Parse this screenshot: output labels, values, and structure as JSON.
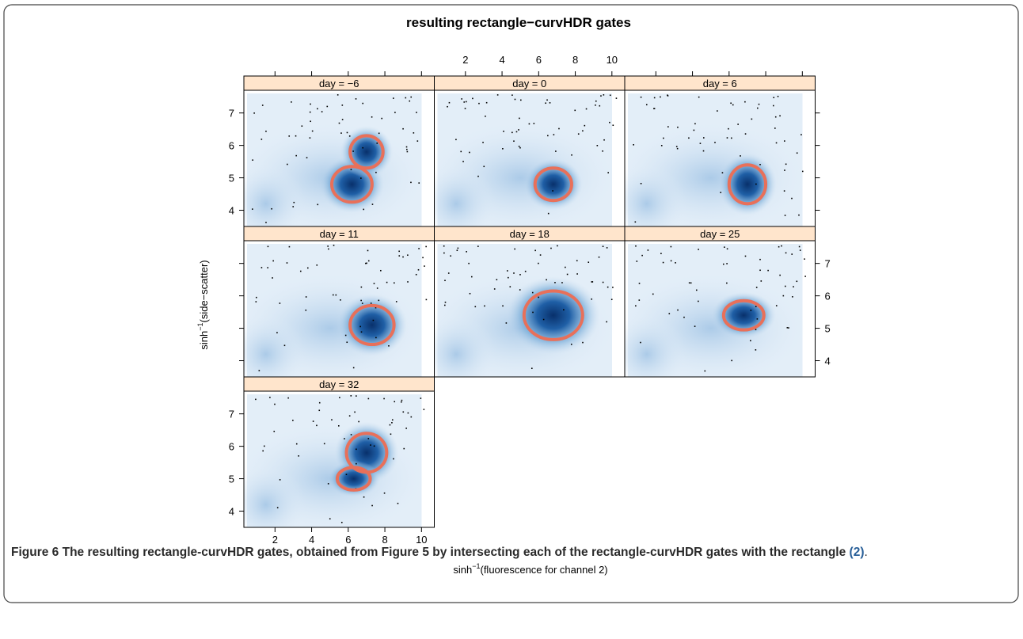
{
  "chart_data": {
    "type": "density-gates",
    "title": "resulting rectangle−curvHDR gates",
    "xlabel": {
      "base": "sinh",
      "sup": "−1",
      "rest": "(fluorescence for channel 2)"
    },
    "ylabel": {
      "base": "sinh",
      "sup": "−1",
      "rest": "(side−scatter)"
    },
    "xlim": [
      0.3,
      10.7
    ],
    "xticks": [
      2,
      4,
      6,
      8,
      10
    ],
    "ylim": [
      3.5,
      7.7
    ],
    "yticks": [
      4,
      5,
      6,
      7
    ],
    "panels": [
      "day = −6",
      "day = 0",
      "day = 6",
      "day = 11",
      "day = 18",
      "day = 25",
      "day = 32"
    ],
    "strip_color": "#ffe5cc",
    "gate_color": "#e8705a"
  },
  "caption": {
    "label": "Figure 6",
    "text": "The resulting rectangle-curvHDR gates, obtained from Figure 5 by intersecting each of the rectangle-curvHDR gates with the rectangle",
    "ref": "(2)",
    "end": "."
  }
}
